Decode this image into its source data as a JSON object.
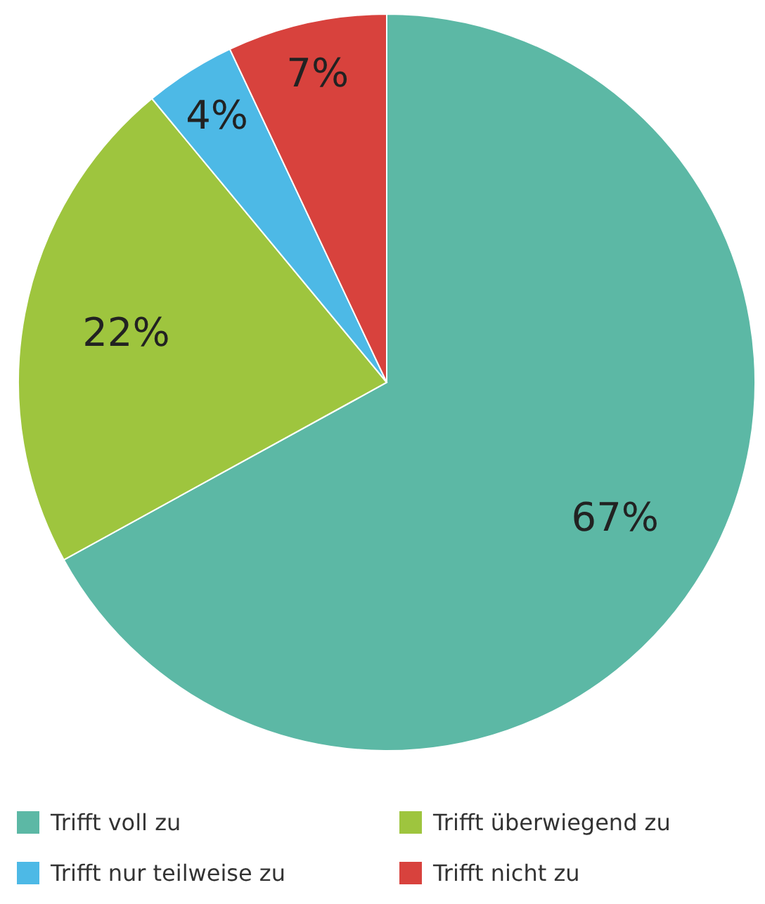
{
  "chart_data": {
    "type": "pie",
    "categories": [
      "Trifft voll zu",
      "Trifft überwiegend zu",
      "Trifft nur teilweise zu",
      "Trifft nicht zu"
    ],
    "values": [
      67,
      22,
      4,
      7
    ],
    "colors": [
      "#5cb8a5",
      "#9ec53e",
      "#4db9e6",
      "#d8423d"
    ],
    "value_labels": [
      "67%",
      "22%",
      "4%",
      "7%"
    ],
    "legend": "bottom"
  }
}
